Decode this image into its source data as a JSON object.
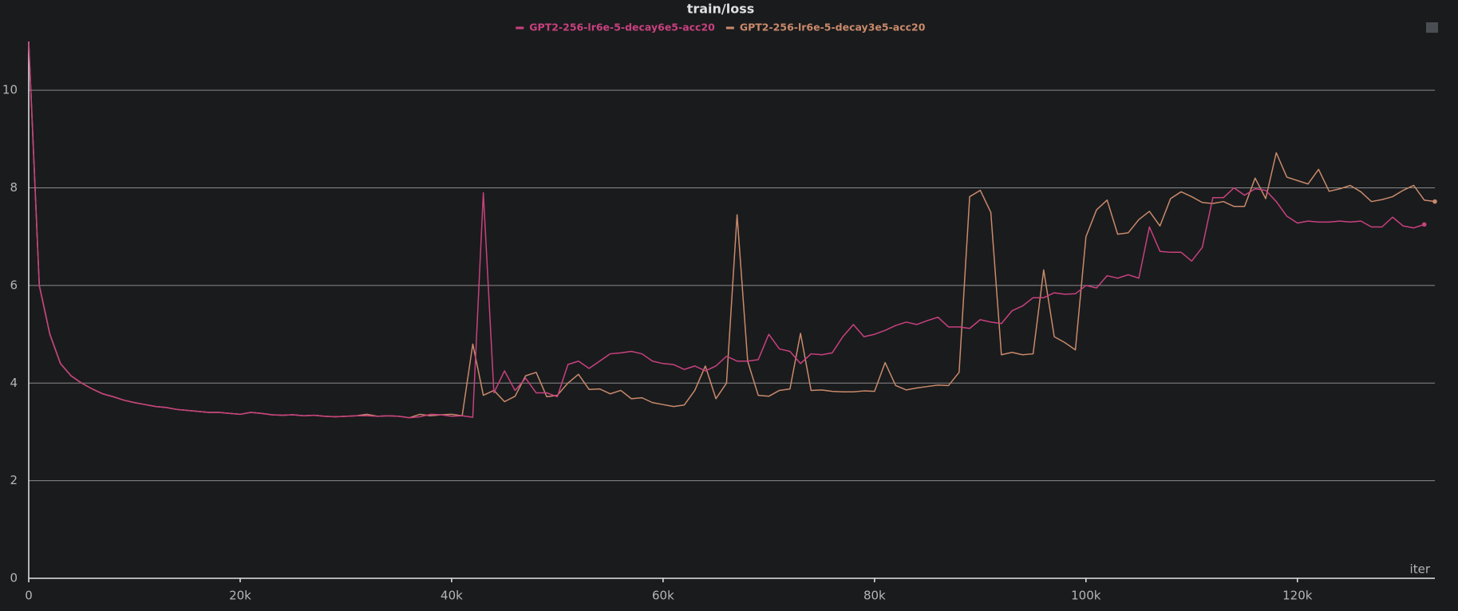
{
  "chart_data": {
    "type": "line",
    "title": "train/loss",
    "x_label": "iter",
    "x": [
      0,
      1000,
      2000,
      3000,
      4000,
      5000,
      6000,
      7000,
      8000,
      9000,
      10000,
      11000,
      12000,
      13000,
      14000,
      15000,
      16000,
      17000,
      18000,
      19000,
      20000,
      21000,
      22000,
      23000,
      24000,
      25000,
      26000,
      27000,
      28000,
      29000,
      30000,
      31000,
      32000,
      33000,
      34000,
      35000,
      36000,
      37000,
      38000,
      39000,
      40000,
      41000,
      42000,
      43000,
      44000,
      45000,
      46000,
      47000,
      48000,
      49000,
      50000,
      51000,
      52000,
      53000,
      54000,
      55000,
      56000,
      57000,
      58000,
      59000,
      60000,
      61000,
      62000,
      63000,
      64000,
      65000,
      66000,
      67000,
      68000,
      69000,
      70000,
      71000,
      72000,
      73000,
      74000,
      75000,
      76000,
      77000,
      78000,
      79000,
      80000,
      81000,
      82000,
      83000,
      84000,
      85000,
      86000,
      87000,
      88000,
      89000,
      90000,
      91000,
      92000,
      93000,
      94000,
      95000,
      96000,
      97000,
      98000,
      99000,
      100000,
      101000,
      102000,
      103000,
      104000,
      105000,
      106000,
      107000,
      108000,
      109000,
      110000,
      111000,
      112000,
      113000,
      114000,
      115000,
      116000,
      117000,
      118000,
      119000,
      120000,
      121000,
      122000,
      123000,
      124000,
      125000,
      126000,
      127000,
      128000,
      129000,
      130000,
      131000,
      132000,
      133000
    ],
    "series": [
      {
        "name": "GPT2-256-lr6e-5-decay6e5-acc20",
        "color": "#c8417f",
        "values": [
          11.0,
          6.0,
          5.0,
          4.4,
          4.15,
          4.0,
          3.88,
          3.78,
          3.72,
          3.65,
          3.6,
          3.56,
          3.52,
          3.5,
          3.46,
          3.44,
          3.42,
          3.4,
          3.4,
          3.38,
          3.36,
          3.4,
          3.38,
          3.35,
          3.34,
          3.35,
          3.33,
          3.34,
          3.32,
          3.31,
          3.32,
          3.33,
          3.33,
          3.32,
          3.33,
          3.32,
          3.29,
          3.31,
          3.36,
          3.35,
          3.32,
          3.33,
          3.3,
          7.9,
          3.8,
          4.25,
          3.85,
          4.1,
          3.8,
          3.8,
          3.72,
          4.38,
          4.45,
          4.3,
          4.45,
          4.6,
          4.62,
          4.65,
          4.6,
          4.45,
          4.4,
          4.38,
          4.28,
          4.35,
          4.25,
          4.35,
          4.55,
          4.45,
          4.45,
          4.48,
          5.0,
          4.7,
          4.65,
          4.4,
          4.6,
          4.58,
          4.62,
          4.95,
          5.2,
          4.95,
          5.0,
          5.08,
          5.18,
          5.25,
          5.2,
          5.28,
          5.35,
          5.15,
          5.15,
          5.12,
          5.3,
          5.25,
          5.22,
          5.48,
          5.58,
          5.75,
          5.75,
          5.85,
          5.82,
          5.83,
          6.0,
          5.95,
          6.2,
          6.15,
          6.22,
          6.15,
          7.2,
          6.7,
          6.68,
          6.68,
          6.5,
          6.78,
          7.8,
          7.8,
          8.0,
          7.85,
          7.98,
          7.95,
          7.72,
          7.42,
          7.28,
          7.32,
          7.3,
          7.3,
          7.32,
          7.3,
          7.32,
          7.2,
          7.2,
          7.4,
          7.22,
          7.18,
          7.25,
          null
        ]
      },
      {
        "name": "GPT2-256-lr6e-5-decay3e5-acc20",
        "color": "#c98a6b",
        "values": [
          11.0,
          6.0,
          5.0,
          4.4,
          4.15,
          4.0,
          3.88,
          3.78,
          3.72,
          3.65,
          3.6,
          3.56,
          3.52,
          3.5,
          3.46,
          3.44,
          3.42,
          3.4,
          3.4,
          3.38,
          3.36,
          3.4,
          3.38,
          3.35,
          3.34,
          3.35,
          3.33,
          3.34,
          3.32,
          3.31,
          3.32,
          3.33,
          3.36,
          3.32,
          3.33,
          3.32,
          3.29,
          3.36,
          3.33,
          3.35,
          3.36,
          3.33,
          4.8,
          3.75,
          3.85,
          3.62,
          3.73,
          4.15,
          4.22,
          3.72,
          3.75,
          4.0,
          4.18,
          3.87,
          3.88,
          3.78,
          3.85,
          3.68,
          3.7,
          3.6,
          3.56,
          3.52,
          3.55,
          3.85,
          4.35,
          3.68,
          4.0,
          7.45,
          4.45,
          3.75,
          3.73,
          3.85,
          3.88,
          5.02,
          3.85,
          3.86,
          3.83,
          3.82,
          3.82,
          3.84,
          3.83,
          4.42,
          3.95,
          3.86,
          3.9,
          3.93,
          3.96,
          3.95,
          4.22,
          7.82,
          7.95,
          7.5,
          4.58,
          4.63,
          4.58,
          4.6,
          6.32,
          4.95,
          4.83,
          4.68,
          7.0,
          7.55,
          7.75,
          7.05,
          7.08,
          7.35,
          7.52,
          7.22,
          7.78,
          7.92,
          7.82,
          7.7,
          7.68,
          7.72,
          7.62,
          7.62,
          8.2,
          7.78,
          8.72,
          8.22,
          8.15,
          8.08,
          8.38,
          7.93,
          7.98,
          8.05,
          7.92,
          7.72,
          7.76,
          7.82,
          7.95,
          8.05,
          7.75,
          7.72
        ]
      }
    ],
    "xlim": [
      0,
      133000
    ],
    "ylim": [
      0,
      11
    ],
    "xticks": [
      {
        "value": 0,
        "label": "0"
      },
      {
        "value": 20000,
        "label": "20k"
      },
      {
        "value": 40000,
        "label": "40k"
      },
      {
        "value": 60000,
        "label": "60k"
      },
      {
        "value": 80000,
        "label": "80k"
      },
      {
        "value": 100000,
        "label": "100k"
      },
      {
        "value": 120000,
        "label": "120k"
      }
    ],
    "yticks": [
      0,
      2,
      4,
      6,
      8,
      10
    ],
    "grid": true
  }
}
